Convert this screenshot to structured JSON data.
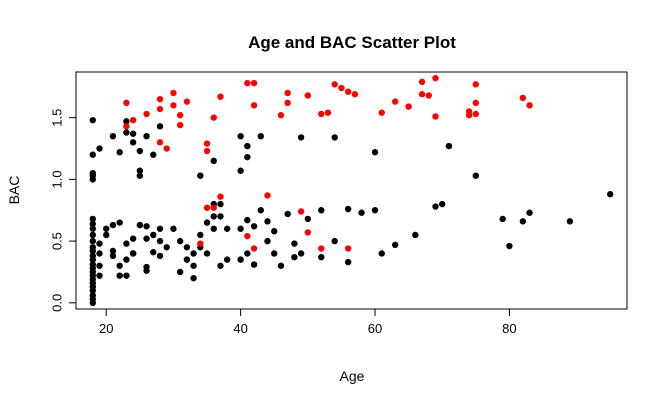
{
  "chart_data": {
    "type": "scatter",
    "title": "Age and BAC Scatter Plot",
    "xlabel": "Age",
    "ylabel": "BAC",
    "xlim": [
      15.5,
      97.5
    ],
    "ylim": [
      -0.05,
      1.87
    ],
    "x_ticks": [
      20,
      40,
      60,
      80
    ],
    "y_ticks": [
      0.0,
      0.5,
      1.0,
      1.5
    ],
    "x_tick_labels": [
      "20",
      "40",
      "60",
      "80"
    ],
    "y_tick_labels": [
      "0.0",
      "0.5",
      "1.0",
      "1.5"
    ],
    "grid": false,
    "legend": "none",
    "colors": {
      "black_points": "#000000",
      "red_points": "#ff0000"
    },
    "series": [
      {
        "color": "#000000",
        "points": [
          [
            18,
            0.0
          ],
          [
            18,
            0.03
          ],
          [
            18,
            0.06
          ],
          [
            18,
            0.1
          ],
          [
            18,
            0.13
          ],
          [
            18,
            0.16
          ],
          [
            18,
            0.19
          ],
          [
            18,
            0.22
          ],
          [
            18,
            0.25
          ],
          [
            18,
            0.28
          ],
          [
            18,
            0.31
          ],
          [
            18,
            0.35
          ],
          [
            18,
            0.38
          ],
          [
            18,
            0.42
          ],
          [
            18,
            0.45
          ],
          [
            18,
            0.5
          ],
          [
            18,
            0.55
          ],
          [
            18,
            0.6
          ],
          [
            18,
            0.64
          ],
          [
            18,
            0.68
          ],
          [
            18,
            1.0
          ],
          [
            18,
            1.03
          ],
          [
            18,
            1.05
          ],
          [
            18,
            1.2
          ],
          [
            18,
            1.48
          ],
          [
            19,
            0.22
          ],
          [
            19,
            0.3
          ],
          [
            19,
            0.4
          ],
          [
            19,
            0.48
          ],
          [
            19,
            1.25
          ],
          [
            20,
            0.55
          ],
          [
            20,
            0.6
          ],
          [
            21,
            0.38
          ],
          [
            21,
            0.42
          ],
          [
            21,
            0.63
          ],
          [
            21,
            1.35
          ],
          [
            22,
            0.22
          ],
          [
            22,
            0.3
          ],
          [
            22,
            0.65
          ],
          [
            22,
            1.22
          ],
          [
            23,
            0.22
          ],
          [
            23,
            0.35
          ],
          [
            23,
            0.48
          ],
          [
            23,
            1.38
          ],
          [
            23,
            1.47
          ],
          [
            24,
            0.4
          ],
          [
            24,
            0.52
          ],
          [
            24,
            0.4
          ],
          [
            24,
            1.3
          ],
          [
            24,
            1.37
          ],
          [
            25,
            0.63
          ],
          [
            25,
            1.03
          ],
          [
            25,
            1.07
          ],
          [
            25,
            1.23
          ],
          [
            26,
            0.26
          ],
          [
            26,
            0.29
          ],
          [
            26,
            0.52
          ],
          [
            26,
            0.62
          ],
          [
            26,
            1.35
          ],
          [
            27,
            0.41
          ],
          [
            27,
            0.55
          ],
          [
            27,
            1.2
          ],
          [
            28,
            0.38
          ],
          [
            28,
            0.5
          ],
          [
            28,
            0.6
          ],
          [
            28,
            1.43
          ],
          [
            29,
            0.45
          ],
          [
            30,
            0.6
          ],
          [
            31,
            0.5
          ],
          [
            31,
            0.25
          ],
          [
            32,
            0.35
          ],
          [
            32,
            0.45
          ],
          [
            33,
            0.2
          ],
          [
            33,
            0.3
          ],
          [
            33,
            0.4
          ],
          [
            34,
            0.45
          ],
          [
            34,
            0.55
          ],
          [
            34,
            1.03
          ],
          [
            35,
            0.4
          ],
          [
            35,
            0.65
          ],
          [
            36,
            0.6
          ],
          [
            36,
            0.7
          ],
          [
            36,
            0.8
          ],
          [
            36,
            1.15
          ],
          [
            37,
            0.3
          ],
          [
            37,
            0.7
          ],
          [
            37,
            0.8
          ],
          [
            38,
            0.35
          ],
          [
            38,
            0.6
          ],
          [
            40,
            0.35
          ],
          [
            40,
            0.6
          ],
          [
            40,
            1.07
          ],
          [
            40,
            1.35
          ],
          [
            41,
            0.4
          ],
          [
            41,
            0.67
          ],
          [
            41,
            1.18
          ],
          [
            41,
            1.27
          ],
          [
            42,
            0.31
          ],
          [
            42,
            0.62
          ],
          [
            43,
            0.75
          ],
          [
            43,
            1.35
          ],
          [
            44,
            0.5
          ],
          [
            44,
            0.66
          ],
          [
            45,
            0.4
          ],
          [
            45,
            0.58
          ],
          [
            46,
            0.3
          ],
          [
            47,
            0.72
          ],
          [
            48,
            0.37
          ],
          [
            48,
            0.48
          ],
          [
            49,
            0.4
          ],
          [
            49,
            1.34
          ],
          [
            50,
            0.68
          ],
          [
            52,
            0.37
          ],
          [
            52,
            0.75
          ],
          [
            54,
            0.5
          ],
          [
            54,
            1.34
          ],
          [
            56,
            0.33
          ],
          [
            56,
            0.76
          ],
          [
            58,
            0.73
          ],
          [
            60,
            0.75
          ],
          [
            60,
            1.22
          ],
          [
            61,
            0.4
          ],
          [
            63,
            0.47
          ],
          [
            66,
            0.55
          ],
          [
            69,
            0.78
          ],
          [
            70,
            0.8
          ],
          [
            71,
            1.27
          ],
          [
            75,
            1.03
          ],
          [
            79,
            0.68
          ],
          [
            80,
            0.46
          ],
          [
            82,
            0.66
          ],
          [
            83,
            0.73
          ],
          [
            89,
            0.66
          ],
          [
            95,
            0.88
          ]
        ]
      },
      {
        "color": "#ff0000",
        "points": [
          [
            23,
            1.62
          ],
          [
            23,
            1.43
          ],
          [
            24,
            1.48
          ],
          [
            26,
            1.53
          ],
          [
            28,
            1.57
          ],
          [
            28,
            1.3
          ],
          [
            28,
            1.65
          ],
          [
            29,
            1.25
          ],
          [
            30,
            1.7
          ],
          [
            30,
            1.6
          ],
          [
            31,
            1.52
          ],
          [
            31,
            1.44
          ],
          [
            32,
            1.63
          ],
          [
            34,
            0.48
          ],
          [
            35,
            1.23
          ],
          [
            35,
            1.29
          ],
          [
            35,
            0.77
          ],
          [
            36,
            0.77
          ],
          [
            36,
            1.5
          ],
          [
            37,
            0.86
          ],
          [
            37,
            1.67
          ],
          [
            41,
            1.78
          ],
          [
            41,
            0.54
          ],
          [
            42,
            1.78
          ],
          [
            42,
            1.6
          ],
          [
            42,
            0.44
          ],
          [
            44,
            0.87
          ],
          [
            46,
            1.52
          ],
          [
            47,
            1.7
          ],
          [
            47,
            1.62
          ],
          [
            49,
            0.74
          ],
          [
            50,
            1.68
          ],
          [
            50,
            0.57
          ],
          [
            52,
            1.53
          ],
          [
            52,
            0.44
          ],
          [
            53,
            1.54
          ],
          [
            54,
            1.77
          ],
          [
            55,
            1.74
          ],
          [
            56,
            1.71
          ],
          [
            56,
            0.44
          ],
          [
            57,
            1.69
          ],
          [
            61,
            1.54
          ],
          [
            63,
            1.63
          ],
          [
            65,
            1.59
          ],
          [
            67,
            1.79
          ],
          [
            67,
            1.69
          ],
          [
            68,
            1.68
          ],
          [
            69,
            1.82
          ],
          [
            69,
            1.51
          ],
          [
            74,
            1.52
          ],
          [
            74,
            1.55
          ],
          [
            75,
            1.77
          ],
          [
            75,
            1.62
          ],
          [
            75,
            1.53
          ],
          [
            82,
            1.66
          ],
          [
            83,
            1.6
          ]
        ]
      }
    ]
  }
}
